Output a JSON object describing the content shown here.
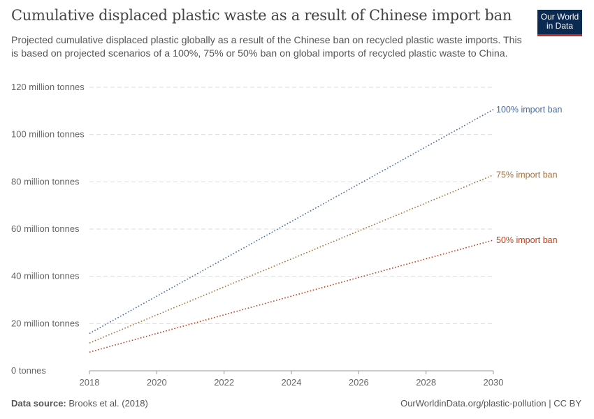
{
  "header": {
    "title": "Cumulative displaced plastic waste as a result of Chinese import ban",
    "subtitle": "Projected cumulative displaced plastic globally as a result of the Chinese ban on recycled plastic waste imports. This is based on projected scenarios of a 100%, 75% or 50% ban on global imports of recycled plastic waste to China.",
    "logo": "Our World in Data"
  },
  "footer": {
    "source_label": "Data source:",
    "source": "Brooks et al. (2018)",
    "credit": "OurWorldinData.org/plastic-pollution | CC BY"
  },
  "chart_data": {
    "type": "line",
    "title": "Cumulative displaced plastic waste as a result of Chinese import ban",
    "xlim": [
      2018,
      2030
    ],
    "ylim": [
      0,
      120
    ],
    "x_ticks": [
      "2018",
      "2020",
      "2022",
      "2024",
      "2026",
      "2028",
      "2030"
    ],
    "y_ticks": [
      {
        "value": 0,
        "label": "0 tonnes"
      },
      {
        "value": 20,
        "label": "20 million tonnes"
      },
      {
        "value": 40,
        "label": "40 million tonnes"
      },
      {
        "value": 60,
        "label": "60 million tonnes"
      },
      {
        "value": 80,
        "label": "80 million tonnes"
      },
      {
        "value": 100,
        "label": "100 million tonnes"
      },
      {
        "value": 120,
        "label": "120 million tonnes"
      }
    ],
    "grid": "horizontal dashed",
    "line_style": "dotted",
    "legend": "inline-right",
    "series": [
      {
        "name": "100% import ban",
        "color": "#4c6a9c",
        "x": [
          2018,
          2030
        ],
        "values": [
          15.8,
          110.6
        ]
      },
      {
        "name": "75% import ban",
        "color": "#a2723e",
        "x": [
          2018,
          2030
        ],
        "values": [
          11.8,
          82.9
        ]
      },
      {
        "name": "50% import ban",
        "color": "#c0401d",
        "x": [
          2018,
          2030
        ],
        "values": [
          7.9,
          55.3
        ]
      }
    ]
  }
}
